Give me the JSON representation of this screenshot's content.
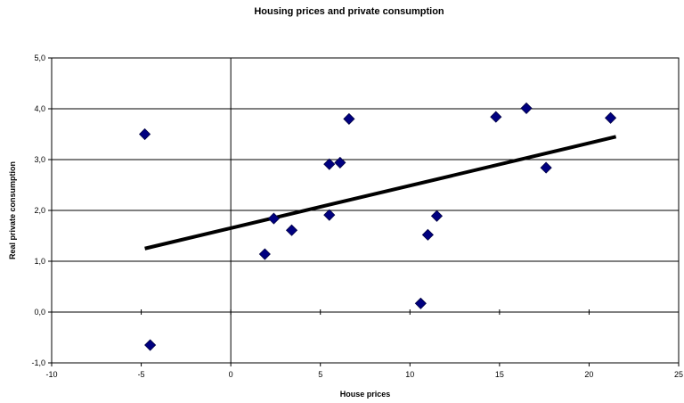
{
  "chart_data": {
    "type": "scatter",
    "title": "Housing prices and private consumption",
    "xlabel": "House prices",
    "ylabel": "Real private consumption",
    "xlim": [
      -10,
      25
    ],
    "ylim": [
      -1.0,
      5.0
    ],
    "x_ticks": [
      -10,
      -5,
      0,
      5,
      10,
      15,
      20,
      25
    ],
    "y_ticks": [
      -1.0,
      0.0,
      1.0,
      2.0,
      3.0,
      4.0,
      5.0
    ],
    "x_tick_labels": [
      "-10",
      "-5",
      "0",
      "5",
      "10",
      "15",
      "20",
      "25"
    ],
    "y_tick_labels": [
      "-1,0",
      "0,0",
      "1,0",
      "2,0",
      "3,0",
      "4,0",
      "5,0"
    ],
    "grid": "horizontal",
    "marker_color": "#000080",
    "trendline_color": "#000000",
    "points": [
      {
        "x": -4.8,
        "y": 3.5
      },
      {
        "x": -4.5,
        "y": -0.65
      },
      {
        "x": 1.9,
        "y": 1.14
      },
      {
        "x": 2.4,
        "y": 1.84
      },
      {
        "x": 3.4,
        "y": 1.61
      },
      {
        "x": 5.5,
        "y": 2.91
      },
      {
        "x": 5.5,
        "y": 1.91
      },
      {
        "x": 6.1,
        "y": 2.94
      },
      {
        "x": 6.6,
        "y": 3.8
      },
      {
        "x": 10.6,
        "y": 0.17
      },
      {
        "x": 11.0,
        "y": 1.52
      },
      {
        "x": 11.5,
        "y": 1.89
      },
      {
        "x": 14.8,
        "y": 3.84
      },
      {
        "x": 16.5,
        "y": 4.01
      },
      {
        "x": 17.6,
        "y": 2.84
      },
      {
        "x": 21.2,
        "y": 3.82
      }
    ],
    "trendline": {
      "x": [
        -4.8,
        21.5
      ],
      "y": [
        1.25,
        3.45
      ]
    }
  }
}
